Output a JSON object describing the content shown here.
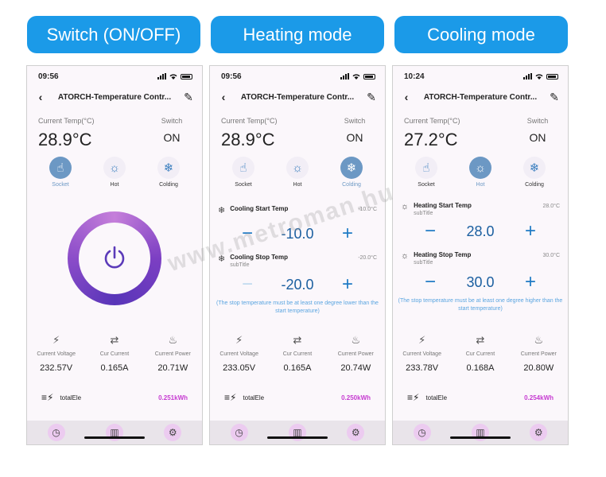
{
  "labels": [
    "Switch (ON/OFF)",
    "Heating mode",
    "Cooling mode"
  ],
  "watermark": "www.metroman.hu",
  "accent_color": "#1b9ae8",
  "common": {
    "title": "ATORCH-Temperature Contr...",
    "current_temp_label": "Current Temp(°C)",
    "switch_label": "Switch",
    "modes": [
      {
        "name": "Socket",
        "icon": "hand-pointer-icon"
      },
      {
        "name": "Hot",
        "icon": "sun-icon"
      },
      {
        "name": "Colding",
        "icon": "snowflake-icon"
      }
    ],
    "metric_labels": [
      "Current Voltage",
      "Cur Current",
      "Current Power"
    ],
    "total_label": "totalEle",
    "subtitle": "subTitle"
  },
  "screens": [
    {
      "time": "09:56",
      "temp": "28.9°C",
      "switch": "ON",
      "metrics": [
        "232.57V",
        "0.165A",
        "20.71W"
      ],
      "total": "0.251kWh"
    },
    {
      "time": "09:56",
      "temp": "28.9°C",
      "switch": "ON",
      "start_label": "Cooling Start Temp",
      "start_value": "-10.0°C",
      "start_display": "-10.0",
      "stop_label": "Cooling Stop Temp",
      "stop_value": "-20.0°C",
      "stop_display": "-20.0",
      "warning": "(The stop temperature must be at least one degree lower than the start temperature)",
      "metrics": [
        "233.05V",
        "0.165A",
        "20.74W"
      ],
      "total": "0.250kWh"
    },
    {
      "time": "10:24",
      "temp": "27.2°C",
      "switch": "ON",
      "start_label": "Heating Start Temp",
      "start_value": "28.0°C",
      "start_display": "28.0",
      "stop_label": "Heating Stop Temp",
      "stop_value": "30.0°C",
      "stop_display": "30.0",
      "warning": "(The stop temperature must be at least one degree higher than the start temperature)",
      "metrics": [
        "233.78V",
        "0.168A",
        "20.80W"
      ],
      "total": "0.254kWh"
    }
  ]
}
